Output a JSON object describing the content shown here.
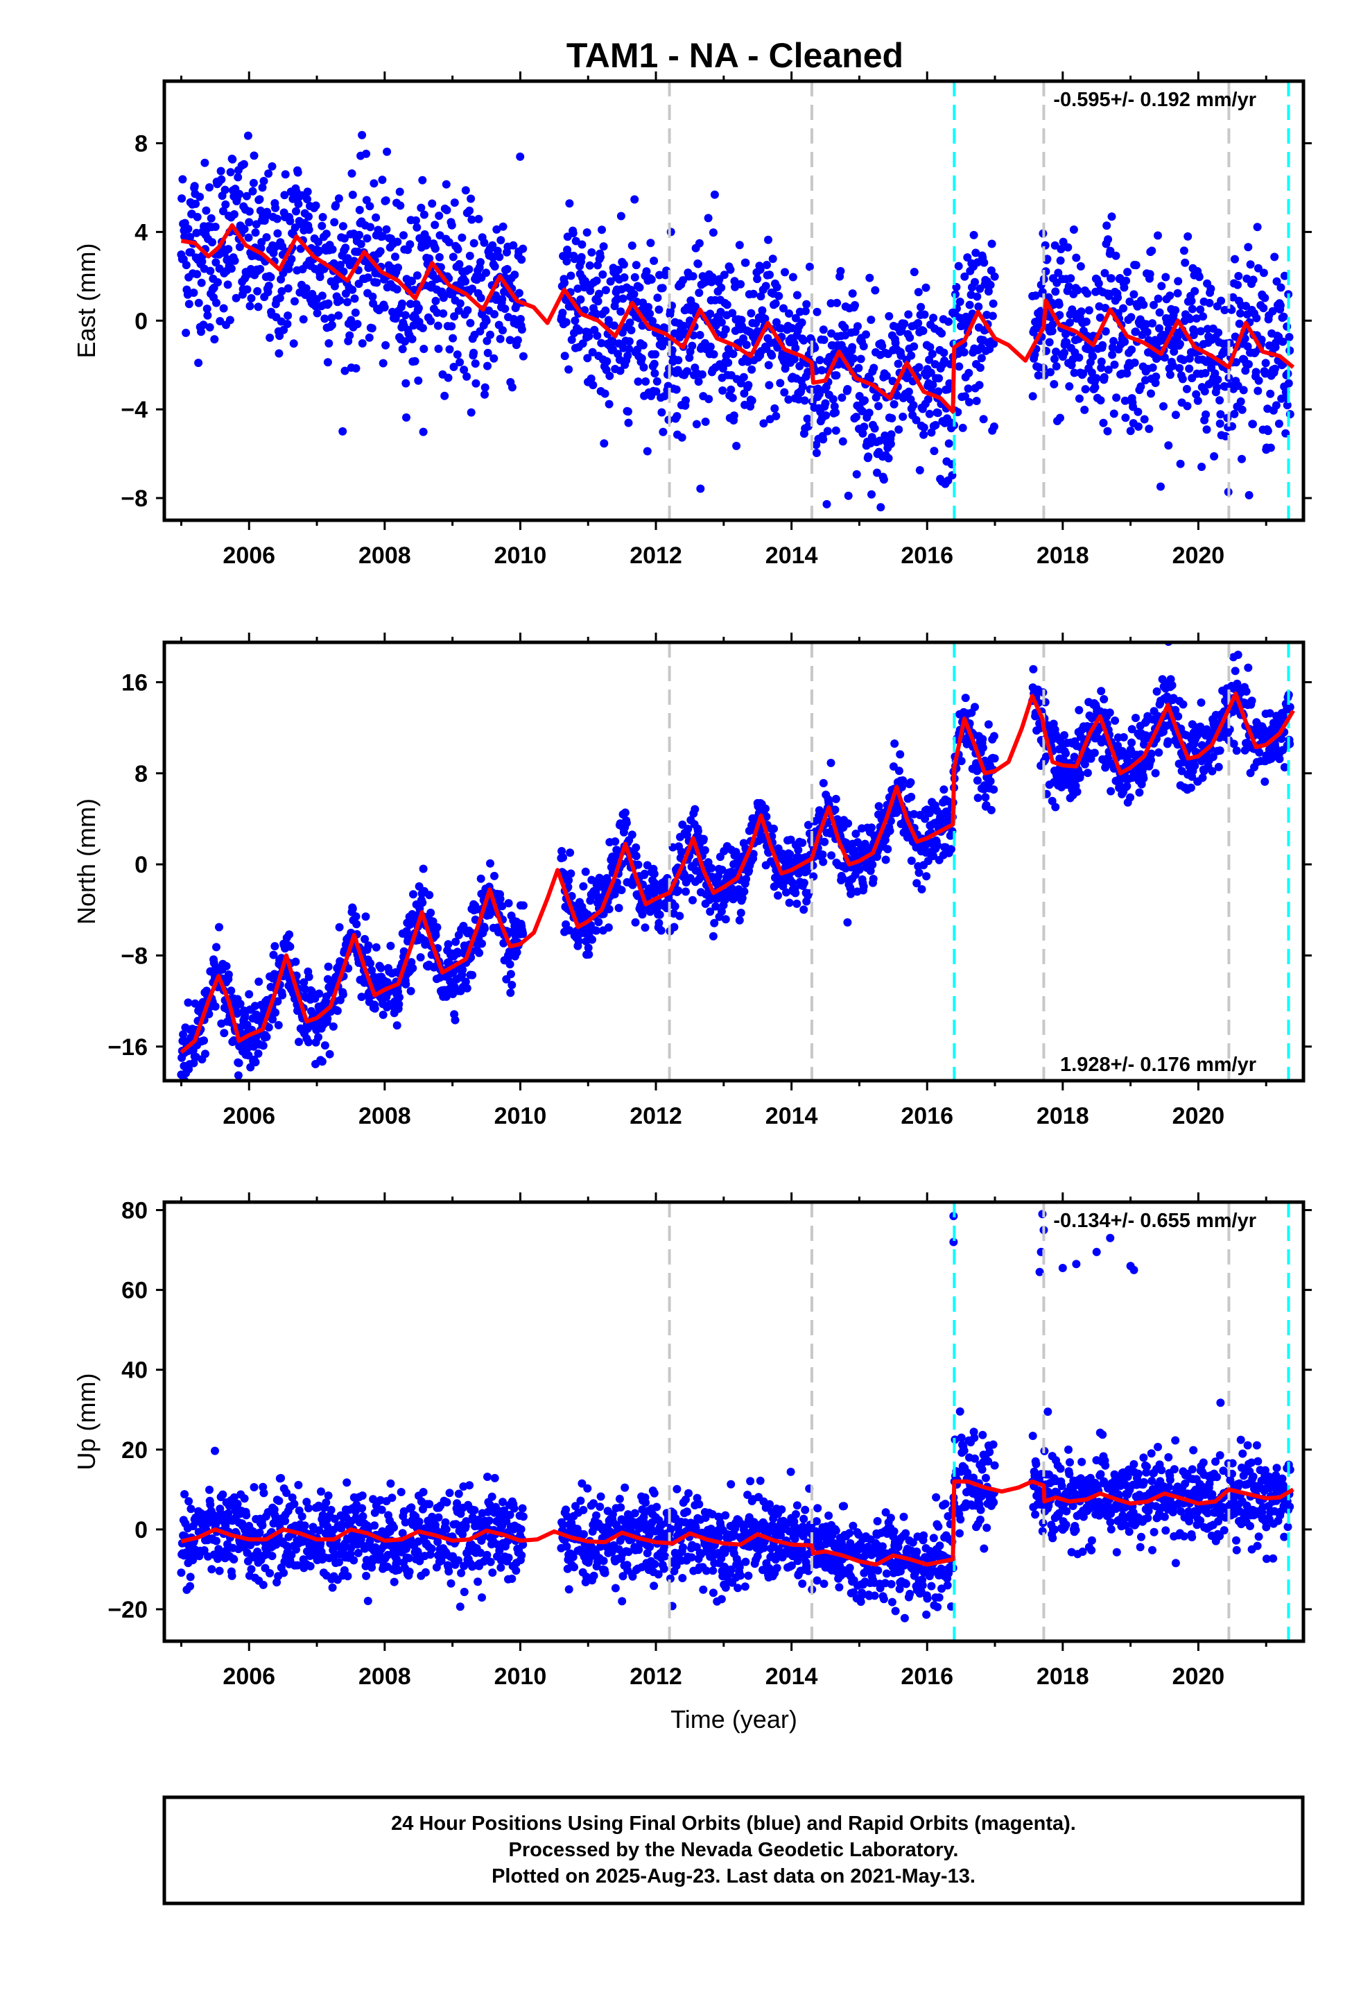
{
  "title": "TAM1  - NA - Cleaned",
  "colors": {
    "final_orbits": "#0000ff",
    "model": "#ff0000",
    "equipment_change": "#c8c8c8",
    "other_event": "#00ffff",
    "frame": "#000000"
  },
  "footer": {
    "line1": "24 Hour Positions Using Final Orbits (blue) and Rapid Orbits (magenta).",
    "line2": "Processed by the Nevada Geodetic Laboratory.",
    "line3": "Plotted on 2025-Aug-23. Last data on 2021-May-13."
  },
  "chart_data": [
    {
      "type": "scatter",
      "title": "TAM1  - NA - Cleaned",
      "ylabel": "East (mm)",
      "xlabel": "",
      "rate_text": "-0.595+/- 0.192 mm/yr",
      "rate_position": "top-right",
      "xlim": [
        2004.75,
        2021.55
      ],
      "ylim": [
        -9,
        10.8
      ],
      "x_ticks": [
        2006,
        2008,
        2010,
        2012,
        2014,
        2016,
        2018,
        2020
      ],
      "y_ticks": [
        -8,
        -4,
        0,
        4,
        8
      ],
      "event_lines": [
        {
          "x": 2012.2,
          "style": "gray-dashed"
        },
        {
          "x": 2014.3,
          "style": "gray-dashed"
        },
        {
          "x": 2016.4,
          "style": "cyan-dashed"
        },
        {
          "x": 2017.72,
          "style": "gray-dashed"
        },
        {
          "x": 2020.45,
          "style": "gray-dashed"
        },
        {
          "x": 2021.33,
          "style": "cyan-dashed"
        }
      ],
      "model_line": [
        [
          2005.0,
          3.6
        ],
        [
          2005.2,
          3.5
        ],
        [
          2005.4,
          2.9
        ],
        [
          2005.55,
          3.3
        ],
        [
          2005.75,
          4.3
        ],
        [
          2005.95,
          3.4
        ],
        [
          2006.2,
          3.0
        ],
        [
          2006.45,
          2.3
        ],
        [
          2006.7,
          3.8
        ],
        [
          2006.95,
          2.9
        ],
        [
          2007.2,
          2.4
        ],
        [
          2007.45,
          1.8
        ],
        [
          2007.7,
          3.1
        ],
        [
          2007.95,
          2.2
        ],
        [
          2008.2,
          1.8
        ],
        [
          2008.45,
          1.0
        ],
        [
          2008.7,
          2.6
        ],
        [
          2008.95,
          1.6
        ],
        [
          2009.2,
          1.2
        ],
        [
          2009.45,
          0.5
        ],
        [
          2009.7,
          2.0
        ],
        [
          2009.95,
          0.9
        ],
        [
          2010.2,
          0.6
        ],
        [
          2010.4,
          -0.1
        ],
        [
          2010.65,
          1.4
        ],
        [
          2010.9,
          0.3
        ],
        [
          2011.15,
          0.0
        ],
        [
          2011.4,
          -0.7
        ],
        [
          2011.65,
          0.8
        ],
        [
          2011.9,
          -0.3
        ],
        [
          2012.15,
          -0.6
        ],
        [
          2012.4,
          -1.2
        ],
        [
          2012.65,
          0.5
        ],
        [
          2012.9,
          -0.8
        ],
        [
          2013.15,
          -1.1
        ],
        [
          2013.4,
          -1.6
        ],
        [
          2013.65,
          -0.1
        ],
        [
          2013.9,
          -1.3
        ],
        [
          2014.15,
          -1.6
        ],
        [
          2014.3,
          -1.9
        ],
        [
          2014.32,
          -2.8
        ],
        [
          2014.5,
          -2.7
        ],
        [
          2014.7,
          -1.4
        ],
        [
          2014.95,
          -2.6
        ],
        [
          2015.2,
          -2.9
        ],
        [
          2015.45,
          -3.5
        ],
        [
          2015.7,
          -1.9
        ],
        [
          2015.95,
          -3.2
        ],
        [
          2016.2,
          -3.5
        ],
        [
          2016.38,
          -4.1
        ],
        [
          2016.4,
          -1.2
        ],
        [
          2016.55,
          -0.9
        ],
        [
          2016.75,
          0.4
        ],
        [
          2017.0,
          -0.8
        ],
        [
          2017.2,
          -1.1
        ],
        [
          2017.45,
          -1.8
        ],
        [
          2017.7,
          -0.4
        ],
        [
          2017.72,
          -0.3
        ],
        [
          2017.75,
          0.9
        ],
        [
          2017.95,
          -0.2
        ],
        [
          2018.2,
          -0.5
        ],
        [
          2018.45,
          -1.1
        ],
        [
          2018.7,
          0.5
        ],
        [
          2018.95,
          -0.7
        ],
        [
          2019.2,
          -1.0
        ],
        [
          2019.45,
          -1.5
        ],
        [
          2019.7,
          0.0
        ],
        [
          2019.95,
          -1.2
        ],
        [
          2020.2,
          -1.6
        ],
        [
          2020.45,
          -2.1
        ],
        [
          2020.7,
          -0.1
        ],
        [
          2020.95,
          -1.4
        ],
        [
          2021.2,
          -1.6
        ],
        [
          2021.4,
          -2.1
        ]
      ]
    },
    {
      "type": "scatter",
      "title": "",
      "ylabel": "North (mm)",
      "xlabel": "",
      "rate_text": "1.928+/- 0.176 mm/yr",
      "rate_position": "bottom-right",
      "xlim": [
        2004.75,
        2021.55
      ],
      "ylim": [
        -19,
        19.5
      ],
      "x_ticks": [
        2006,
        2008,
        2010,
        2012,
        2014,
        2016,
        2018,
        2020
      ],
      "y_ticks": [
        -16,
        -8,
        0,
        8,
        16
      ],
      "event_lines": [
        {
          "x": 2012.2,
          "style": "gray-dashed"
        },
        {
          "x": 2014.3,
          "style": "gray-dashed"
        },
        {
          "x": 2016.4,
          "style": "cyan-dashed"
        },
        {
          "x": 2017.72,
          "style": "gray-dashed"
        },
        {
          "x": 2020.45,
          "style": "gray-dashed"
        },
        {
          "x": 2021.33,
          "style": "cyan-dashed"
        }
      ],
      "model_line": [
        [
          2005.0,
          -16.5
        ],
        [
          2005.2,
          -15.5
        ],
        [
          2005.4,
          -12.0
        ],
        [
          2005.55,
          -9.8
        ],
        [
          2005.7,
          -12.0
        ],
        [
          2005.85,
          -15.5
        ],
        [
          2006.0,
          -15.0
        ],
        [
          2006.2,
          -14.5
        ],
        [
          2006.4,
          -11.0
        ],
        [
          2006.55,
          -8.0
        ],
        [
          2006.7,
          -11.0
        ],
        [
          2006.85,
          -13.8
        ],
        [
          2007.0,
          -13.5
        ],
        [
          2007.2,
          -12.5
        ],
        [
          2007.4,
          -9.0
        ],
        [
          2007.55,
          -6.2
        ],
        [
          2007.7,
          -9.0
        ],
        [
          2007.85,
          -11.5
        ],
        [
          2008.0,
          -11.0
        ],
        [
          2008.2,
          -10.5
        ],
        [
          2008.4,
          -7.0
        ],
        [
          2008.55,
          -4.2
        ],
        [
          2008.7,
          -7.0
        ],
        [
          2008.85,
          -9.5
        ],
        [
          2009.0,
          -9.0
        ],
        [
          2009.2,
          -8.3
        ],
        [
          2009.4,
          -5.0
        ],
        [
          2009.55,
          -2.2
        ],
        [
          2009.7,
          -5.0
        ],
        [
          2009.85,
          -7.2
        ],
        [
          2010.0,
          -7.0
        ],
        [
          2010.2,
          -6.0
        ],
        [
          2010.4,
          -3.0
        ],
        [
          2010.55,
          -0.5
        ],
        [
          2010.7,
          -3.0
        ],
        [
          2010.85,
          -5.5
        ],
        [
          2011.0,
          -5.0
        ],
        [
          2011.2,
          -4.0
        ],
        [
          2011.4,
          -1.0
        ],
        [
          2011.55,
          1.8
        ],
        [
          2011.7,
          -1.0
        ],
        [
          2011.85,
          -3.5
        ],
        [
          2012.0,
          -3.0
        ],
        [
          2012.2,
          -2.5
        ],
        [
          2012.4,
          0.0
        ],
        [
          2012.55,
          2.3
        ],
        [
          2012.7,
          -0.5
        ],
        [
          2012.85,
          -2.5
        ],
        [
          2013.0,
          -2.0
        ],
        [
          2013.2,
          -1.2
        ],
        [
          2013.4,
          1.5
        ],
        [
          2013.55,
          4.3
        ],
        [
          2013.7,
          1.5
        ],
        [
          2013.85,
          -0.8
        ],
        [
          2014.0,
          -0.5
        ],
        [
          2014.3,
          0.5
        ],
        [
          2014.4,
          2.5
        ],
        [
          2014.55,
          5.0
        ],
        [
          2014.7,
          2.0
        ],
        [
          2014.85,
          0.0
        ],
        [
          2015.0,
          0.3
        ],
        [
          2015.2,
          1.0
        ],
        [
          2015.4,
          4.0
        ],
        [
          2015.55,
          6.8
        ],
        [
          2015.7,
          4.0
        ],
        [
          2015.85,
          2.0
        ],
        [
          2016.0,
          2.3
        ],
        [
          2016.38,
          3.5
        ],
        [
          2016.4,
          8.5
        ],
        [
          2016.55,
          12.8
        ],
        [
          2016.7,
          10.5
        ],
        [
          2016.85,
          8.0
        ],
        [
          2017.0,
          8.2
        ],
        [
          2017.2,
          9.0
        ],
        [
          2017.4,
          12.0
        ],
        [
          2017.55,
          14.8
        ],
        [
          2017.7,
          12.8
        ],
        [
          2017.72,
          12.0
        ],
        [
          2017.85,
          9.0
        ],
        [
          2018.0,
          8.7
        ],
        [
          2018.2,
          8.6
        ],
        [
          2018.4,
          11.5
        ],
        [
          2018.55,
          13.0
        ],
        [
          2018.7,
          10.5
        ],
        [
          2018.85,
          8.0
        ],
        [
          2019.0,
          8.5
        ],
        [
          2019.2,
          9.5
        ],
        [
          2019.4,
          12.0
        ],
        [
          2019.55,
          14.0
        ],
        [
          2019.7,
          11.5
        ],
        [
          2019.85,
          9.3
        ],
        [
          2020.0,
          9.5
        ],
        [
          2020.2,
          10.5
        ],
        [
          2020.4,
          13.0
        ],
        [
          2020.55,
          15.0
        ],
        [
          2020.7,
          12.5
        ],
        [
          2020.85,
          10.3
        ],
        [
          2021.0,
          10.5
        ],
        [
          2021.2,
          11.5
        ],
        [
          2021.4,
          13.5
        ]
      ]
    },
    {
      "type": "scatter",
      "title": "",
      "ylabel": "Up (mm)",
      "xlabel": "Time (year)",
      "rate_text": "-0.134+/- 0.655 mm/yr",
      "rate_position": "top-right",
      "xlim": [
        2004.75,
        2021.55
      ],
      "ylim": [
        -28,
        82
      ],
      "x_ticks": [
        2006,
        2008,
        2010,
        2012,
        2014,
        2016,
        2018,
        2020
      ],
      "y_ticks": [
        -20,
        0,
        20,
        40,
        60,
        80
      ],
      "event_lines": [
        {
          "x": 2012.2,
          "style": "gray-dashed"
        },
        {
          "x": 2014.3,
          "style": "gray-dashed"
        },
        {
          "x": 2016.4,
          "style": "cyan-dashed"
        },
        {
          "x": 2017.72,
          "style": "gray-dashed"
        },
        {
          "x": 2020.45,
          "style": "gray-dashed"
        },
        {
          "x": 2021.33,
          "style": "cyan-dashed"
        }
      ],
      "model_line": [
        [
          2005.0,
          -3.0
        ],
        [
          2005.25,
          -2.0
        ],
        [
          2005.5,
          0.0
        ],
        [
          2005.75,
          -1.5
        ],
        [
          2006.0,
          -2.5
        ],
        [
          2006.25,
          -2.5
        ],
        [
          2006.5,
          0.0
        ],
        [
          2006.75,
          -1.0
        ],
        [
          2007.0,
          -2.5
        ],
        [
          2007.25,
          -2.5
        ],
        [
          2007.5,
          0.0
        ],
        [
          2007.75,
          -1.0
        ],
        [
          2008.0,
          -2.8
        ],
        [
          2008.25,
          -2.5
        ],
        [
          2008.5,
          -0.5
        ],
        [
          2008.75,
          -1.5
        ],
        [
          2009.0,
          -2.8
        ],
        [
          2009.25,
          -2.5
        ],
        [
          2009.5,
          -0.3
        ],
        [
          2009.75,
          -1.3
        ],
        [
          2010.0,
          -2.8
        ],
        [
          2010.25,
          -2.5
        ],
        [
          2010.5,
          -0.5
        ],
        [
          2010.75,
          -2.0
        ],
        [
          2011.0,
          -3.0
        ],
        [
          2011.25,
          -3.2
        ],
        [
          2011.5,
          -0.8
        ],
        [
          2011.75,
          -2.2
        ],
        [
          2012.0,
          -3.2
        ],
        [
          2012.25,
          -3.5
        ],
        [
          2012.5,
          -1.0
        ],
        [
          2012.75,
          -2.5
        ],
        [
          2013.0,
          -3.5
        ],
        [
          2013.25,
          -3.8
        ],
        [
          2013.5,
          -1.2
        ],
        [
          2013.75,
          -2.8
        ],
        [
          2014.0,
          -3.8
        ],
        [
          2014.3,
          -4.0
        ],
        [
          2014.32,
          -6.0
        ],
        [
          2014.5,
          -5.5
        ],
        [
          2014.75,
          -6.5
        ],
        [
          2015.0,
          -8.0
        ],
        [
          2015.25,
          -8.8
        ],
        [
          2015.5,
          -6.5
        ],
        [
          2015.75,
          -7.5
        ],
        [
          2016.0,
          -8.8
        ],
        [
          2016.38,
          -7.5
        ],
        [
          2016.4,
          12.0
        ],
        [
          2016.6,
          12.0
        ],
        [
          2016.85,
          10.5
        ],
        [
          2017.1,
          9.5
        ],
        [
          2017.35,
          10.5
        ],
        [
          2017.55,
          12.0
        ],
        [
          2017.72,
          11.0
        ],
        [
          2017.73,
          7.0
        ],
        [
          2017.9,
          8.0
        ],
        [
          2018.1,
          7.0
        ],
        [
          2018.35,
          7.5
        ],
        [
          2018.55,
          9.0
        ],
        [
          2018.8,
          7.5
        ],
        [
          2019.0,
          6.5
        ],
        [
          2019.25,
          7.0
        ],
        [
          2019.5,
          9.0
        ],
        [
          2019.75,
          7.8
        ],
        [
          2020.0,
          6.5
        ],
        [
          2020.25,
          7.0
        ],
        [
          2020.45,
          10.0
        ],
        [
          2020.7,
          9.0
        ],
        [
          2021.0,
          7.8
        ],
        [
          2021.2,
          8.0
        ],
        [
          2021.4,
          10.0
        ]
      ],
      "outliers": [
        [
          2016.39,
          78.5
        ],
        [
          2016.39,
          72.0
        ],
        [
          2017.7,
          79.0
        ],
        [
          2017.68,
          69.5
        ],
        [
          2017.66,
          64.5
        ],
        [
          2017.72,
          75.0
        ],
        [
          2018.0,
          65.5
        ],
        [
          2018.2,
          66.5
        ],
        [
          2018.5,
          69.5
        ],
        [
          2018.7,
          73.0
        ],
        [
          2019.0,
          66.0
        ],
        [
          2019.05,
          65.0
        ],
        [
          2017.78,
          29.5
        ]
      ]
    }
  ]
}
